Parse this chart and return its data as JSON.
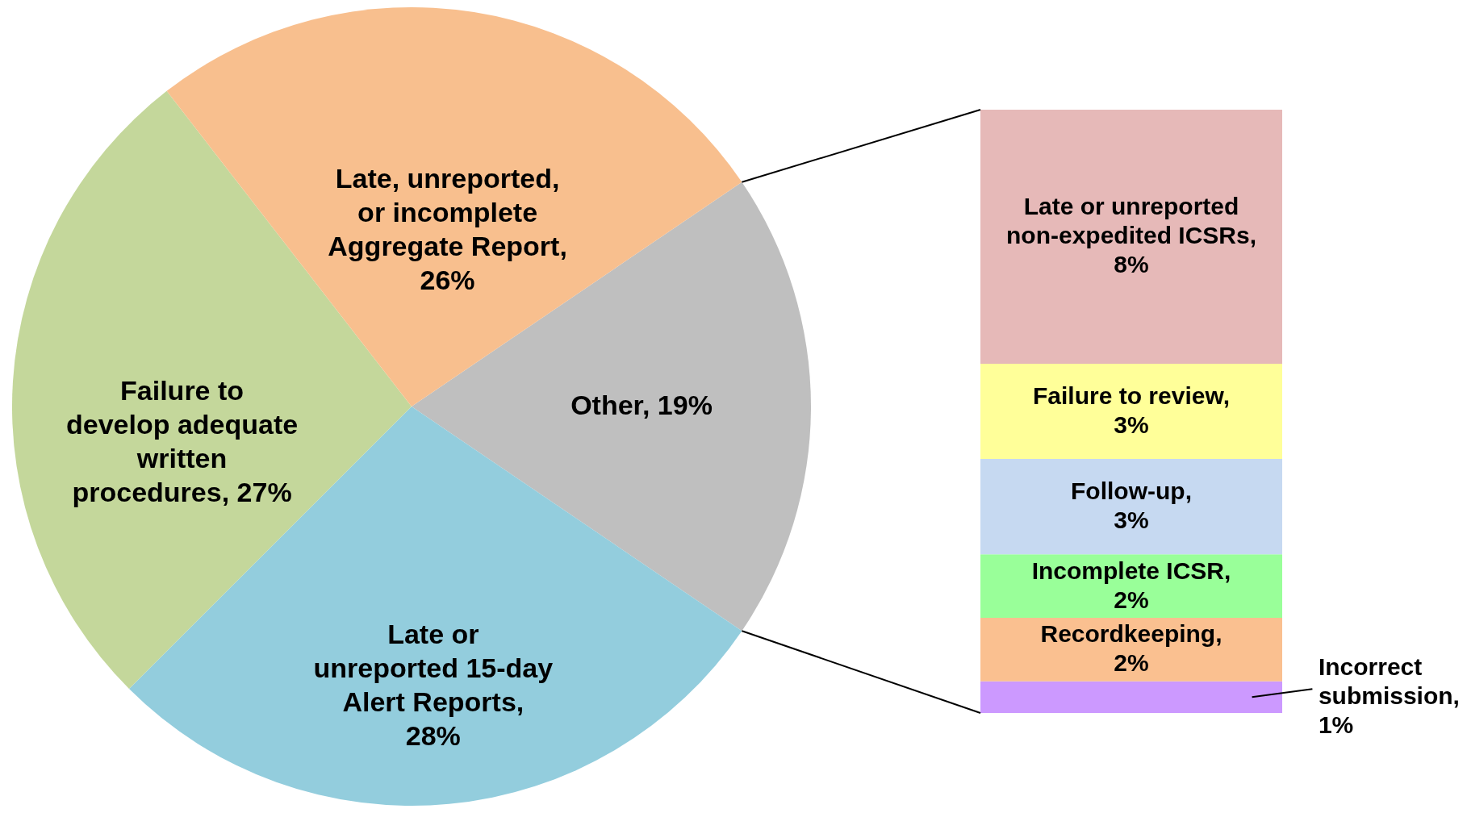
{
  "chart_data": [
    {
      "type": "pie",
      "categories": [
        "Other, 19%",
        "Late or unreported 15-day Alert Reports, 28%",
        "Failure to develop adequate written procedures, 27%",
        "Late, unreported, or incomplete Aggregate Report, 26%"
      ],
      "values": [
        19,
        28,
        27,
        26
      ],
      "colors": [
        "#bfbfbf",
        "#93cddd",
        "#c4d79b",
        "#f8bf8e"
      ]
    },
    {
      "type": "bar",
      "stacked": true,
      "categories": [
        null
      ],
      "series": [
        {
          "name": "Incorrect submission,",
          "color": "#cc99ff",
          "values": [
            1
          ],
          "value_labels": [
            "1%"
          ]
        },
        {
          "name": "Recordkeeping,",
          "color": "#fac090",
          "values": [
            2
          ],
          "value_labels": [
            "2%"
          ]
        },
        {
          "name": "Incomplete ICSR,",
          "color": "#99ff99",
          "values": [
            2
          ],
          "value_labels": [
            "2%"
          ]
        },
        {
          "name": "Follow-up,",
          "color": "#c6d9f1",
          "values": [
            3
          ],
          "value_labels": [
            "3%"
          ]
        },
        {
          "name": "Failure to review,",
          "color": "#ffff99",
          "values": [
            3
          ],
          "value_labels": [
            "3%"
          ]
        },
        {
          "name": "Late or unreported non-expedited ICSRs,",
          "color": "#e6b9b8",
          "values": [
            8
          ],
          "value_labels": [
            "8%"
          ]
        }
      ]
    }
  ]
}
